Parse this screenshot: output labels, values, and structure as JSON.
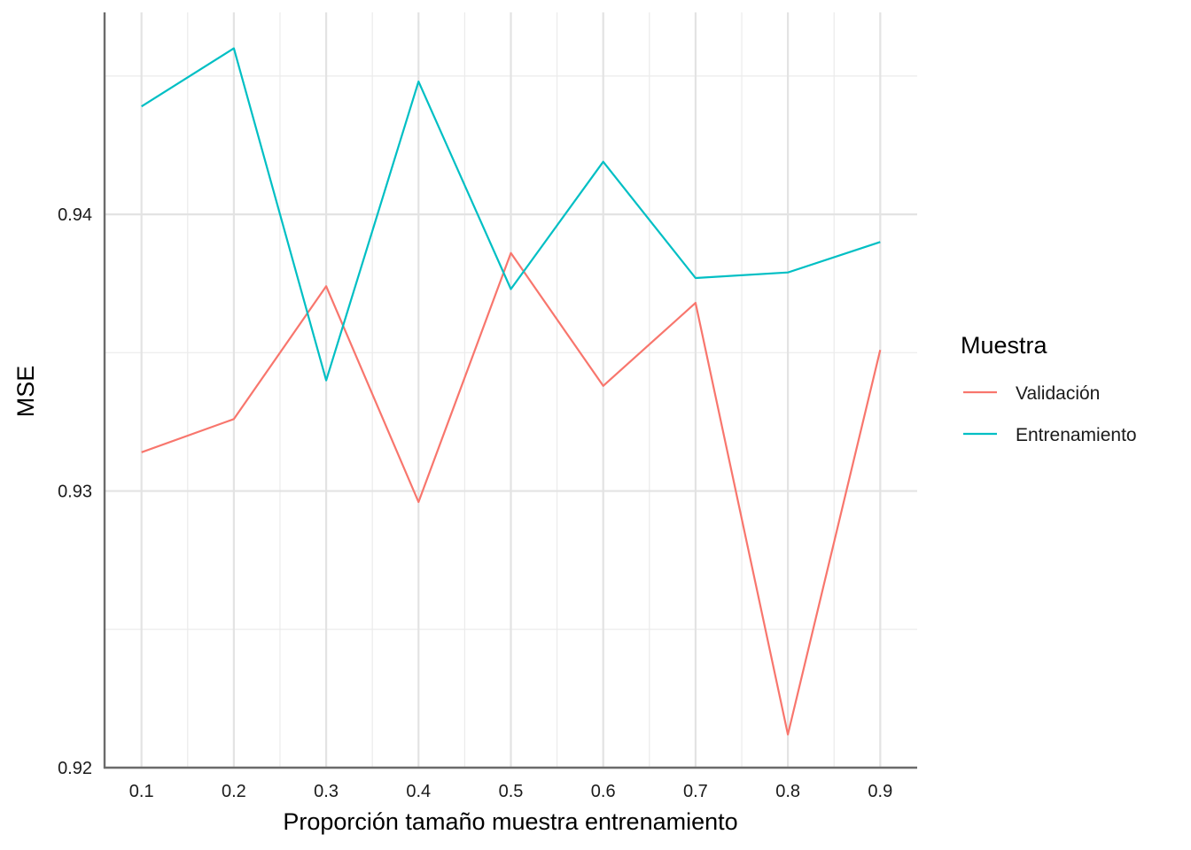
{
  "chart_data": {
    "type": "line",
    "xlabel": "Proporción tamaño muestra entrenamiento",
    "ylabel": "MSE",
    "x": [
      0.1,
      0.2,
      0.3,
      0.4,
      0.5,
      0.6,
      0.7,
      0.8,
      0.9
    ],
    "x_tick_labels": [
      "0.1",
      "0.2",
      "0.3",
      "0.4",
      "0.5",
      "0.6",
      "0.7",
      "0.8",
      "0.9"
    ],
    "xlim": [
      0.06,
      0.94
    ],
    "ylim": [
      0.92,
      0.9473
    ],
    "y_ticks": [
      0.92,
      0.93,
      0.94
    ],
    "y_tick_labels": [
      "0.92",
      "0.93",
      "0.94"
    ],
    "grid": true,
    "legend": {
      "title": "Muestra",
      "position": "right"
    },
    "series": [
      {
        "name": "Validación",
        "color": "#F8766D",
        "values": [
          0.9314,
          0.9326,
          0.9374,
          0.9296,
          0.9386,
          0.9338,
          0.9368,
          0.9212,
          0.9351
        ]
      },
      {
        "name": "Entrenamiento",
        "color": "#00BFC4",
        "values": [
          0.9439,
          0.946,
          0.934,
          0.9448,
          0.9373,
          0.9419,
          0.9377,
          0.9379,
          0.939
        ]
      }
    ]
  }
}
